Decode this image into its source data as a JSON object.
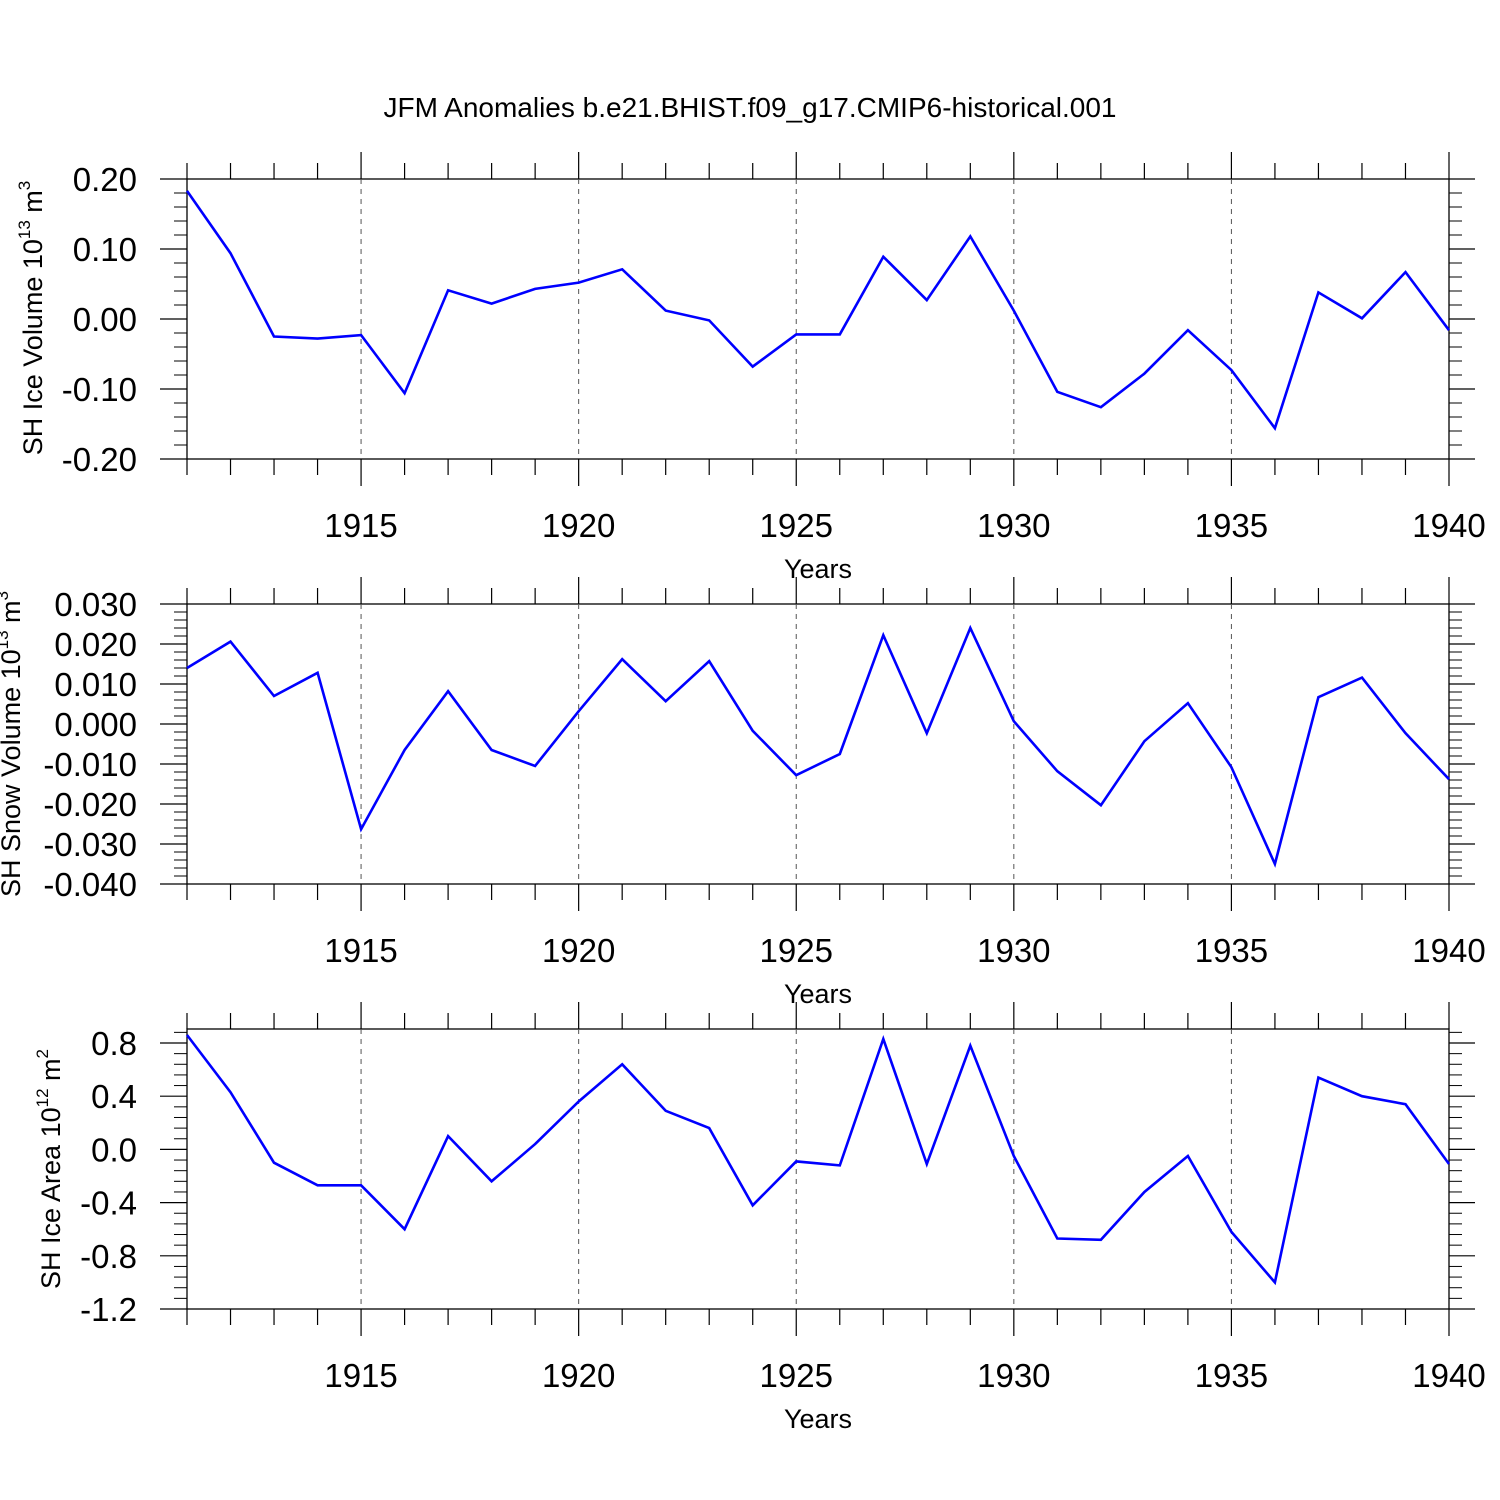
{
  "title": "JFM Anomalies b.e21.BHIST.f09_g17.CMIP6-historical.001",
  "colors": {
    "line": "#0000ff",
    "axis": "#000000",
    "grid": "#555555"
  },
  "chart_data": [
    {
      "type": "line",
      "ylabel": {
        "main": "SH Ice Volume 10",
        "exp": "13",
        "unit": " m",
        "unit_exp": "3"
      },
      "xlabel": "Years",
      "xlim": [
        1911,
        1940
      ],
      "ylim": [
        -0.2,
        0.2
      ],
      "xticks": [
        1915,
        1920,
        1925,
        1930,
        1935,
        1940
      ],
      "xtick_labels": [
        "1915",
        "1920",
        "1925",
        "1930",
        "1935",
        "1940"
      ],
      "yticks": [
        0.2,
        0.1,
        0.0,
        -0.1,
        -0.2
      ],
      "ytick_labels": [
        "0.20",
        "0.10",
        "0.00",
        "-0.10",
        "-0.20"
      ],
      "grid": "vertical dashed at 1915, 1920, 1925, 1930, 1935",
      "series": [
        {
          "x": [
            1911,
            1912,
            1913,
            1914,
            1915,
            1916,
            1917,
            1918,
            1919,
            1920,
            1921,
            1922,
            1923,
            1924,
            1925,
            1926,
            1927,
            1928,
            1929,
            1930,
            1931,
            1932,
            1933,
            1934,
            1935,
            1936,
            1937,
            1938,
            1939,
            1940
          ],
          "values": [
            0.183,
            0.094,
            -0.025,
            -0.028,
            -0.023,
            -0.106,
            0.041,
            0.022,
            0.043,
            0.052,
            0.071,
            0.012,
            -0.002,
            -0.068,
            -0.022,
            -0.022,
            0.089,
            0.027,
            0.118,
            0.012,
            -0.104,
            -0.126,
            -0.078,
            -0.016,
            -0.073,
            -0.156,
            0.038,
            0.001,
            0.067,
            -0.016
          ]
        }
      ]
    },
    {
      "type": "line",
      "ylabel": {
        "main": "SH Snow Volume 10",
        "exp": "13",
        "unit": " m",
        "unit_exp": "3"
      },
      "xlabel": "Years",
      "xlim": [
        1911,
        1940
      ],
      "ylim": [
        -0.04,
        0.03
      ],
      "xticks": [
        1915,
        1920,
        1925,
        1930,
        1935,
        1940
      ],
      "xtick_labels": [
        "1915",
        "1920",
        "1925",
        "1930",
        "1935",
        "1940"
      ],
      "yticks": [
        0.03,
        0.02,
        0.01,
        0.0,
        -0.01,
        -0.02,
        -0.03,
        -0.04
      ],
      "ytick_labels": [
        "0.030",
        "0.020",
        "0.010",
        "0.000",
        "-0.010",
        "-0.020",
        "-0.030",
        "-0.040"
      ],
      "grid": "vertical dashed at 1915, 1920, 1925, 1930, 1935",
      "series": [
        {
          "x": [
            1911,
            1912,
            1913,
            1914,
            1915,
            1916,
            1917,
            1918,
            1919,
            1920,
            1921,
            1922,
            1923,
            1924,
            1925,
            1926,
            1927,
            1928,
            1929,
            1930,
            1931,
            1932,
            1933,
            1934,
            1935,
            1936,
            1937,
            1938,
            1939,
            1940
          ],
          "values": [
            0.014,
            0.0206,
            0.007,
            0.0128,
            -0.0263,
            -0.0065,
            0.0082,
            -0.0065,
            -0.0105,
            0.0032,
            0.0162,
            0.0057,
            0.0157,
            -0.0017,
            -0.0128,
            -0.0075,
            0.0222,
            -0.0023,
            0.024,
            0.0007,
            -0.0118,
            -0.0203,
            -0.0043,
            0.0052,
            -0.0108,
            -0.035,
            0.0067,
            0.0116,
            -0.0023,
            -0.0138
          ]
        }
      ]
    },
    {
      "type": "line",
      "ylabel": {
        "main": "SH Ice Area 10",
        "exp": "12",
        "unit": " m",
        "unit_exp": "2"
      },
      "xlabel": "Years",
      "xlim": [
        1911,
        1940
      ],
      "ylim": [
        -1.2,
        0.9
      ],
      "xticks": [
        1915,
        1920,
        1925,
        1930,
        1935,
        1940
      ],
      "xtick_labels": [
        "1915",
        "1920",
        "1925",
        "1930",
        "1935",
        "1940"
      ],
      "yticks": [
        0.8,
        0.4,
        0.0,
        -0.4,
        -0.8,
        -1.2
      ],
      "ytick_labels": [
        "0.8",
        "0.4",
        "0.0",
        "-0.4",
        "-0.8",
        "-1.2"
      ],
      "grid": "vertical dashed at 1915, 1920, 1925, 1930, 1935",
      "series": [
        {
          "x": [
            1911,
            1912,
            1913,
            1914,
            1915,
            1916,
            1917,
            1918,
            1919,
            1920,
            1921,
            1922,
            1923,
            1924,
            1925,
            1926,
            1927,
            1928,
            1929,
            1930,
            1931,
            1932,
            1933,
            1934,
            1935,
            1936,
            1937,
            1938,
            1939,
            1940
          ],
          "values": [
            0.86,
            0.43,
            -0.1,
            -0.27,
            -0.27,
            -0.6,
            0.1,
            -0.24,
            0.04,
            0.36,
            0.64,
            0.29,
            0.16,
            -0.42,
            -0.09,
            -0.12,
            0.83,
            -0.11,
            0.78,
            -0.05,
            -0.67,
            -0.68,
            -0.32,
            -0.05,
            -0.62,
            -1.0,
            0.54,
            0.4,
            0.34,
            -0.11
          ]
        }
      ]
    }
  ]
}
